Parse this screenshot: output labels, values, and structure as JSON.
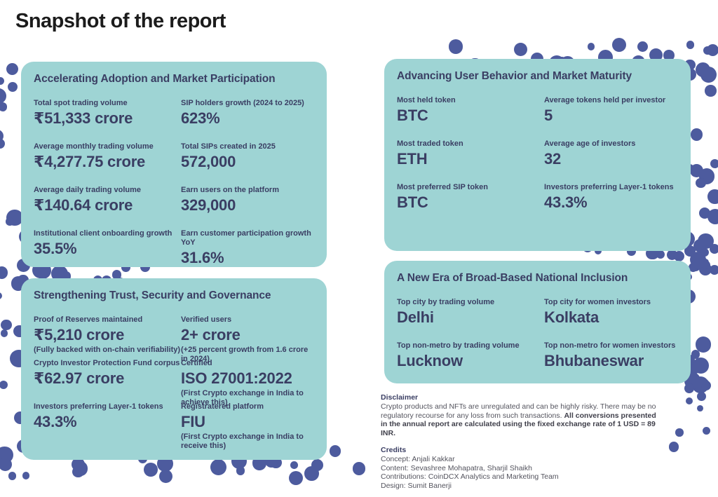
{
  "page": {
    "title": "Snapshot of the report"
  },
  "colors": {
    "card_bg": "#9ED4D4",
    "text_navy": "#3A3E63",
    "dot_indigo": "#4D5B9E",
    "body_text": "#54545E"
  },
  "cards": [
    {
      "id": "adoption",
      "title": "Accelerating Adoption and Market Participation",
      "stats": [
        {
          "label": "Total spot trading volume",
          "value": "₹51,333 crore"
        },
        {
          "label": "SIP holders growth (2024 to 2025)",
          "value": "623%"
        },
        {
          "label": "Average monthly trading volume",
          "value": "₹4,277.75 crore"
        },
        {
          "label": "Total SIPs created in 2025",
          "value": "572,000"
        },
        {
          "label": "Average daily trading volume",
          "value": "₹140.64 crore"
        },
        {
          "label": "Earn users on the platform",
          "value": "329,000"
        },
        {
          "label": "Institutional client onboarding growth",
          "value": "35.5%"
        },
        {
          "label": "Earn customer participation growth YoY",
          "value": "31.6%"
        }
      ]
    },
    {
      "id": "trust",
      "title": "Strengthening Trust, Security and Governance",
      "stats": [
        {
          "label": "Proof of Reserves maintained",
          "value": "₹5,210 crore",
          "note": "(Fully backed with on-chain verifiability)"
        },
        {
          "label": "Verified users",
          "value": "2+ crore",
          "note": "(+25 percent growth from 1.6 crore in 2024)"
        },
        {
          "label": "Crypto Investor Protection Fund corpus",
          "value": "₹62.97 crore"
        },
        {
          "label": "Certified",
          "value": "ISO 27001:2022",
          "note": "(First Crypto exchange in India to achieve this)"
        },
        {
          "label": "Investors preferring Layer-1 tokens",
          "value": "43.3%"
        },
        {
          "label": "Registratered platform",
          "value": "FIU",
          "note": "(First Crypto exchange in India to receive this)"
        }
      ]
    },
    {
      "id": "behavior",
      "title": "Advancing User Behavior and Market Maturity",
      "stats": [
        {
          "label": "Most held token",
          "value": "BTC"
        },
        {
          "label": "Average tokens held per investor",
          "value": "5"
        },
        {
          "label": "Most traded token",
          "value": "ETH"
        },
        {
          "label": "Average age of investors",
          "value": "32"
        },
        {
          "label": "Most preferred SIP token",
          "value": "BTC"
        },
        {
          "label": "Investors preferring Layer-1 tokens",
          "value": "43.3%"
        }
      ]
    },
    {
      "id": "inclusion",
      "title": "A New Era of Broad-Based National Inclusion",
      "stats": [
        {
          "label": "Top city by trading volume",
          "value": "Delhi"
        },
        {
          "label": "Top city for women investors",
          "value": "Kolkata"
        },
        {
          "label": "Top non-metro by trading volume",
          "value": "Lucknow"
        },
        {
          "label": "Top non-metro for women investors",
          "value": "Bhubaneswar"
        }
      ]
    }
  ],
  "disclaimer": {
    "heading": "Disclaimer",
    "text_regular": "Crypto products and NFTs are unregulated and can be highly risky. There may be no regulatory recourse for any loss from such transactions. ",
    "text_bold": "All conversions presented in the annual report are calculated using the fixed exchange rate of 1 USD = 89 INR."
  },
  "credits": {
    "heading": "Credits",
    "lines": [
      "Concept: Anjali Kakkar",
      "Content: Sevashree Mohapatra, Sharjil Shaikh",
      "Contributions: CoinDCX Analytics and Marketing Team",
      "Design: Sumit Banerji"
    ]
  }
}
